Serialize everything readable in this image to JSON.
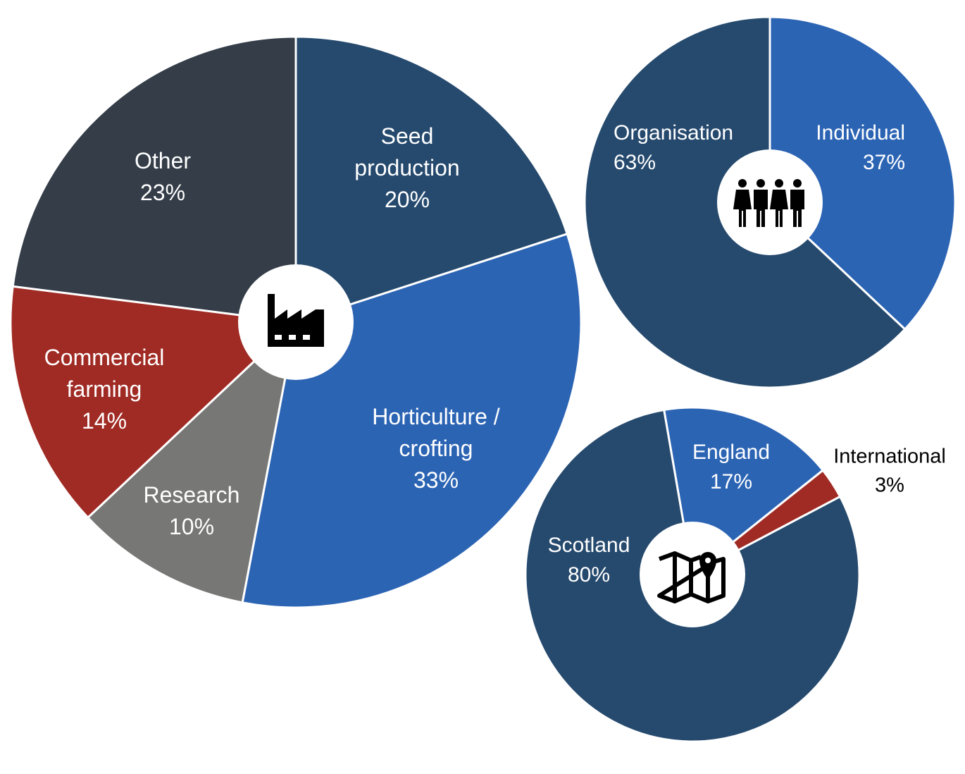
{
  "chart_data": [
    {
      "type": "pie",
      "categories": [
        "Seed production",
        "Horticulture / crofting",
        "Research",
        "Commercial farming",
        "Other"
      ],
      "values": [
        20,
        33,
        10,
        14,
        23
      ],
      "value_labels": [
        "20%",
        "33%",
        "10%",
        "14%",
        "23%"
      ],
      "colors": [
        "#264a6e",
        "#2c64b4",
        "#777775",
        "#a02b24",
        "#343d48"
      ]
    },
    {
      "type": "pie",
      "categories": [
        "Individual",
        "Organisation"
      ],
      "values": [
        37,
        63
      ],
      "value_labels": [
        "37%",
        "63%"
      ],
      "colors": [
        "#2c64b4",
        "#264a6e"
      ]
    },
    {
      "type": "pie",
      "categories": [
        "England",
        "International",
        "Scotland"
      ],
      "values": [
        17,
        3,
        80
      ],
      "value_labels": [
        "17%",
        "3%",
        "80%"
      ],
      "colors": [
        "#2c64b4",
        "#a02b24",
        "#264a6e"
      ]
    }
  ]
}
